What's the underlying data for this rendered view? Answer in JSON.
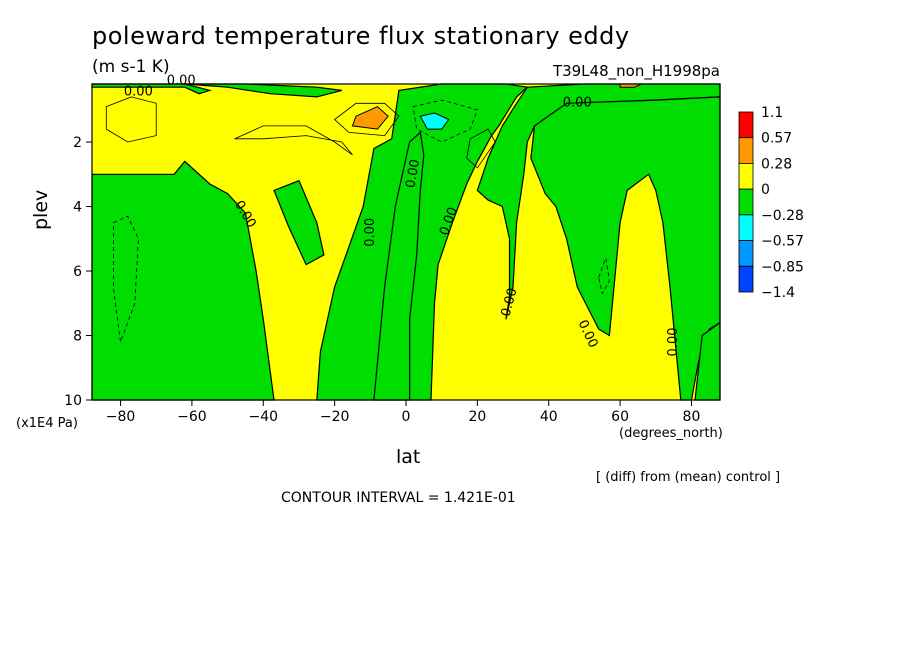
{
  "figure": {
    "title": "poleward temperature flux stationary eddy",
    "units": "(m s-1 K)",
    "run_id": "T39L48_non_H1998pa",
    "xlabel": "lat",
    "ylabel": "plev",
    "y_unit": "(x1E4 Pa)",
    "x_unit": "(degrees_north)",
    "diff_note": "[ (diff) from (mean) control ]",
    "contour_interval": "CONTOUR INTERVAL = 1.421E-01"
  },
  "chart_data": {
    "type": "contour",
    "title": "poleward temperature flux stationary eddy",
    "xlabel": "lat",
    "ylabel": "plev",
    "xlim": [
      -88,
      88
    ],
    "ylim": [
      10,
      0.2
    ],
    "x_ticks": [
      -80,
      -60,
      -40,
      -20,
      0,
      20,
      40,
      60,
      80
    ],
    "y_ticks": [
      2,
      4,
      6,
      8,
      10
    ],
    "contour_interval": 0.1421,
    "zero_contour_labels": [
      "0.00",
      "0.00",
      "0.00",
      "0.00",
      "0.00",
      "0.00",
      "0.00",
      "0.00",
      "0.00",
      "0.00"
    ],
    "colorbar": {
      "levels": [
        "1.1",
        "0.57",
        "0.28",
        "0",
        "−0.28",
        "−0.57",
        "−0.85",
        "−1.4"
      ],
      "colors": [
        "#ff0000",
        "#ff9900",
        "#ffff00",
        "#00dd00",
        "#00ffff",
        "#0099ff",
        "#0044ff"
      ]
    },
    "background_color": "#ffff00",
    "negative_regions": [
      {
        "name": "southern-polar-lower",
        "polygon": [
          [
            -88,
            3.0
          ],
          [
            -75,
            3.0
          ],
          [
            -65,
            3.0
          ],
          [
            -62,
            2.6
          ],
          [
            -55,
            3.3
          ],
          [
            -50,
            3.6
          ],
          [
            -45,
            4.2
          ],
          [
            -42,
            6.0
          ],
          [
            -40,
            7.5
          ],
          [
            -37,
            10
          ],
          [
            -88,
            10
          ]
        ]
      },
      {
        "name": "southern-upper-edge",
        "polygon": [
          [
            -88,
            0.2
          ],
          [
            -62,
            0.2
          ],
          [
            -55,
            0.4
          ],
          [
            -58,
            0.5
          ],
          [
            -62,
            0.3
          ],
          [
            -70,
            0.3
          ],
          [
            -88,
            0.3
          ]
        ]
      },
      {
        "name": "southern-subtropic-upper",
        "polygon": [
          [
            -62,
            0.2
          ],
          [
            -50,
            0.3
          ],
          [
            -38,
            0.5
          ],
          [
            -25,
            0.6
          ],
          [
            -18,
            0.4
          ],
          [
            -25,
            0.3
          ],
          [
            -45,
            0.2
          ]
        ]
      },
      {
        "name": "tropical-cell-sh",
        "polygon": [
          [
            -37,
            3.5
          ],
          [
            -30,
            3.2
          ],
          [
            -25,
            4.5
          ],
          [
            -23,
            5.5
          ],
          [
            -28,
            5.8
          ],
          [
            -33,
            4.6
          ]
        ]
      },
      {
        "name": "equatorial-trunk",
        "polygon": [
          [
            -25,
            10
          ],
          [
            -24,
            8.5
          ],
          [
            -20,
            6.5
          ],
          [
            -12,
            4.0
          ],
          [
            -9,
            2.2
          ],
          [
            -4,
            1.9
          ],
          [
            -2,
            0.4
          ],
          [
            10,
            0.2
          ],
          [
            28,
            0.2
          ],
          [
            34,
            0.3
          ],
          [
            31,
            0.6
          ],
          [
            26,
            1.5
          ],
          [
            24,
            1.8
          ],
          [
            20,
            2.6
          ],
          [
            17,
            3.3
          ],
          [
            13,
            4.5
          ],
          [
            9,
            5.8
          ],
          [
            8,
            7.0
          ],
          [
            7,
            10
          ]
        ]
      },
      {
        "name": "equatorial-to-south-gap",
        "polygon": [
          [
            -9,
            10
          ],
          [
            -6,
            6.5
          ],
          [
            -3,
            4.0
          ],
          [
            -1,
            3.0
          ],
          [
            1,
            2.0
          ],
          [
            4,
            1.7
          ],
          [
            5,
            2.4
          ],
          [
            4,
            3.5
          ],
          [
            3,
            5.5
          ],
          [
            1,
            7.5
          ],
          [
            1,
            10
          ]
        ]
      },
      {
        "name": "north-midlat-upper",
        "polygon": [
          [
            34,
            0.3
          ],
          [
            50,
            0.2
          ],
          [
            75,
            0.2
          ],
          [
            88,
            0.2
          ],
          [
            88,
            0.6
          ],
          [
            70,
            0.7
          ],
          [
            45,
            0.8
          ],
          [
            36,
            1.5
          ],
          [
            34,
            2.0
          ],
          [
            33,
            3.0
          ],
          [
            31,
            4.5
          ],
          [
            30,
            6.5
          ],
          [
            28,
            7.5
          ],
          [
            29,
            6.8
          ],
          [
            29,
            5.0
          ],
          [
            27,
            4.0
          ],
          [
            23,
            3.8
          ],
          [
            20,
            3.5
          ],
          [
            23,
            2.5
          ],
          [
            27,
            1.5
          ],
          [
            31,
            0.8
          ]
        ]
      },
      {
        "name": "north-high-lat",
        "polygon": [
          [
            88,
            0.6
          ],
          [
            88,
            7.6
          ],
          [
            85,
            7.8
          ],
          [
            82,
            8.8
          ],
          [
            80,
            10
          ],
          [
            77,
            10
          ],
          [
            74,
            6.5
          ],
          [
            72,
            4.5
          ],
          [
            70,
            3.5
          ],
          [
            68,
            3.0
          ],
          [
            62,
            3.5
          ],
          [
            60,
            4.5
          ],
          [
            57,
            8.0
          ],
          [
            54,
            7.8
          ],
          [
            48,
            6.5
          ],
          [
            45,
            5.0
          ],
          [
            42,
            4.0
          ],
          [
            39,
            3.6
          ],
          [
            35,
            2.5
          ],
          [
            36,
            1.5
          ],
          [
            45,
            0.8
          ],
          [
            70,
            0.7
          ]
        ]
      },
      {
        "name": "north-pole-lower-wedge",
        "polygon": [
          [
            83,
            8.0
          ],
          [
            88,
            7.6
          ],
          [
            88,
            10
          ],
          [
            81,
            10
          ]
        ]
      }
    ],
    "positive_patches": [
      {
        "name": "orange-max-sh",
        "polygon": [
          [
            -14,
            1.2
          ],
          [
            -8,
            0.9
          ],
          [
            -5,
            1.2
          ],
          [
            -8,
            1.6
          ],
          [
            -15,
            1.5
          ]
        ],
        "color": "#ff9900"
      },
      {
        "name": "cyan-min-nh",
        "polygon": [
          [
            4,
            1.2
          ],
          [
            8,
            1.1
          ],
          [
            12,
            1.3
          ],
          [
            10,
            1.6
          ],
          [
            6,
            1.6
          ]
        ],
        "color": "#00ffff"
      },
      {
        "name": "orange-top-nh",
        "polygon": [
          [
            60,
            0.2
          ],
          [
            66,
            0.2
          ],
          [
            64,
            0.3
          ],
          [
            60,
            0.3
          ]
        ],
        "color": "#ff9900"
      }
    ]
  }
}
